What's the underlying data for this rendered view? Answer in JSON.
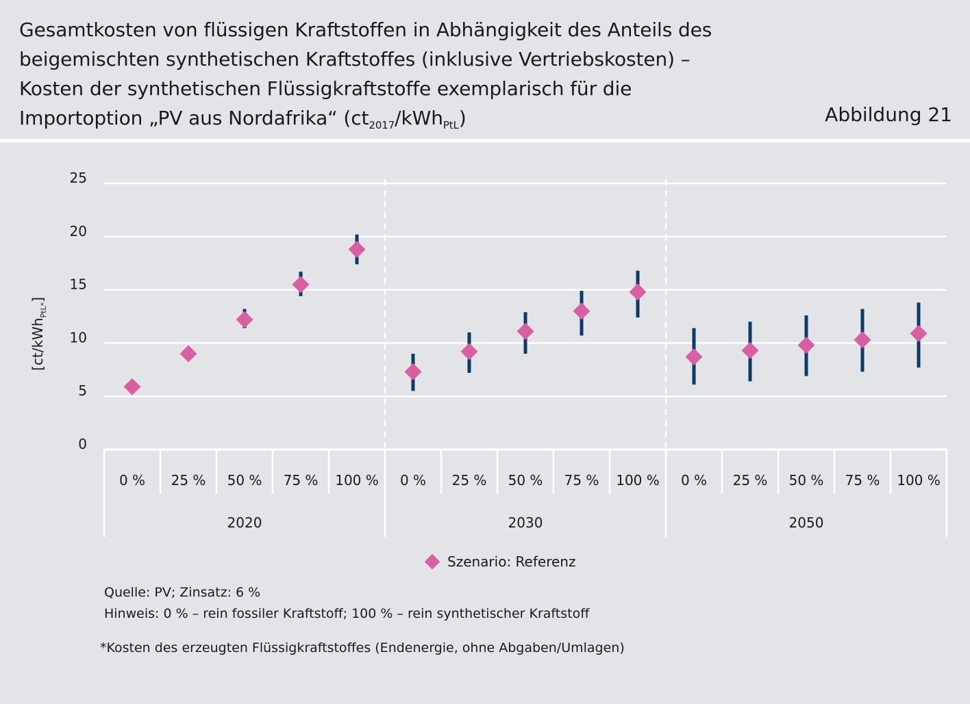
{
  "header": {
    "title_lines": [
      "Gesamtkosten von flüssigen Kraftstoffen in Abhängigkeit des Anteils des",
      "beigemischten synthetischen Kraftstoffes (inklusive Vertriebskosten) –",
      "Kosten der synthetischen Flüssigkraftstoffe exemplarisch für die"
    ],
    "title_last_prefix": "Importoption „PV aus Nordafrika“ (ct",
    "title_last_sub1": "2017",
    "title_last_mid": "/kWh",
    "title_last_sub2": "PtL",
    "title_last_suffix": ")",
    "figure_label": "Abbildung 21"
  },
  "colors": {
    "background": "#e3e4e8",
    "gridline": "#ffffff",
    "marker": "#d95fa0",
    "range_bar": "#0e3a66"
  },
  "chart_data": {
    "type": "scatter",
    "ylabel_main": "[ct/kWh",
    "ylabel_sub": "PtL*",
    "ylabel_end": "]",
    "ylim": [
      0,
      25
    ],
    "yticks": [
      0,
      5,
      10,
      15,
      20,
      25
    ],
    "grid": true,
    "legend_position": "bottom-center",
    "groups": [
      {
        "label": "2020",
        "categories": [
          "0 %",
          "25 %",
          "50 %",
          "75 %",
          "100 %"
        ]
      },
      {
        "label": "2030",
        "categories": [
          "0 %",
          "25 %",
          "50 %",
          "75 %",
          "100 %"
        ]
      },
      {
        "label": "2050",
        "categories": [
          "0 %",
          "25 %",
          "50 %",
          "75 %",
          "100 %"
        ]
      }
    ],
    "series": [
      {
        "name": "Szenario: Referenz",
        "values": [
          5.9,
          9.0,
          12.2,
          15.5,
          18.8,
          7.3,
          9.2,
          11.1,
          13.0,
          14.8,
          8.7,
          9.3,
          9.8,
          10.3,
          10.9
        ],
        "range_low": [
          null,
          null,
          11.4,
          14.4,
          17.4,
          5.5,
          7.2,
          9.0,
          10.7,
          12.4,
          6.1,
          6.4,
          6.9,
          7.3,
          7.7
        ],
        "range_high": [
          null,
          null,
          13.2,
          16.7,
          20.2,
          9.0,
          11.0,
          12.9,
          14.9,
          16.8,
          11.4,
          12.0,
          12.6,
          13.2,
          13.8
        ]
      }
    ]
  },
  "notes": {
    "source": "Quelle: PV; Zinsatz: 6 %",
    "hint": "Hinweis: 0 % – rein fossiler Kraftstoff; 100 % – rein synthetischer Kraftstoff",
    "footnote": "*Kosten des erzeugten Flüssigkraftstoffes (Endenergie, ohne Abgaben/Umlagen)"
  }
}
